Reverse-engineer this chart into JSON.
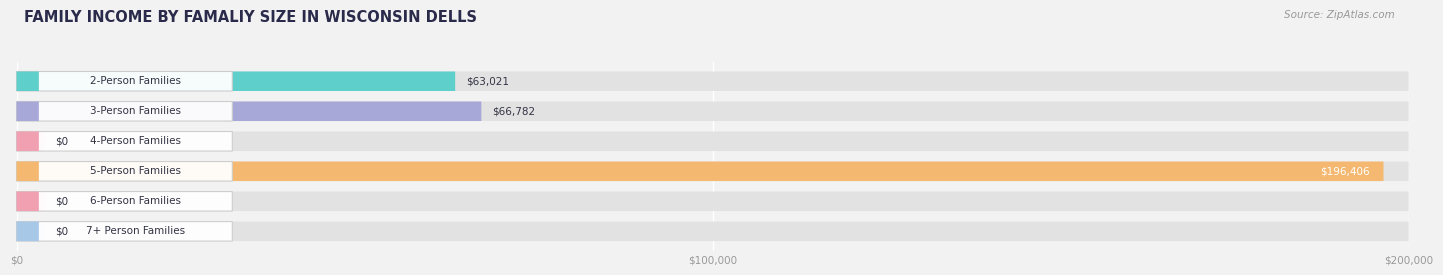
{
  "title": "FAMILY INCOME BY FAMALIY SIZE IN WISCONSIN DELLS",
  "source": "Source: ZipAtlas.com",
  "categories": [
    "2-Person Families",
    "3-Person Families",
    "4-Person Families",
    "5-Person Families",
    "6-Person Families",
    "7+ Person Families"
  ],
  "values": [
    63021,
    66782,
    0,
    196406,
    0,
    0
  ],
  "bar_colors": [
    "#5ecfca",
    "#a8a8d8",
    "#f0a0b0",
    "#f5b870",
    "#f0a0b0",
    "#a8c8e8"
  ],
  "value_labels": [
    "$63,021",
    "$66,782",
    "$0",
    "$196,406",
    "$0",
    "$0"
  ],
  "xlim": [
    0,
    200000
  ],
  "xticks": [
    0,
    100000,
    200000
  ],
  "xtick_labels": [
    "$0",
    "$100,000",
    "$200,000"
  ],
  "background_color": "#f2f2f2",
  "bar_bg_color": "#e2e2e2",
  "title_color": "#2a2a4a",
  "source_color": "#999999",
  "label_text_color": "#333344",
  "title_fontsize": 10.5,
  "source_fontsize": 7.5,
  "label_fontsize": 7.5,
  "value_fontsize": 7.5,
  "tick_fontsize": 7.5
}
